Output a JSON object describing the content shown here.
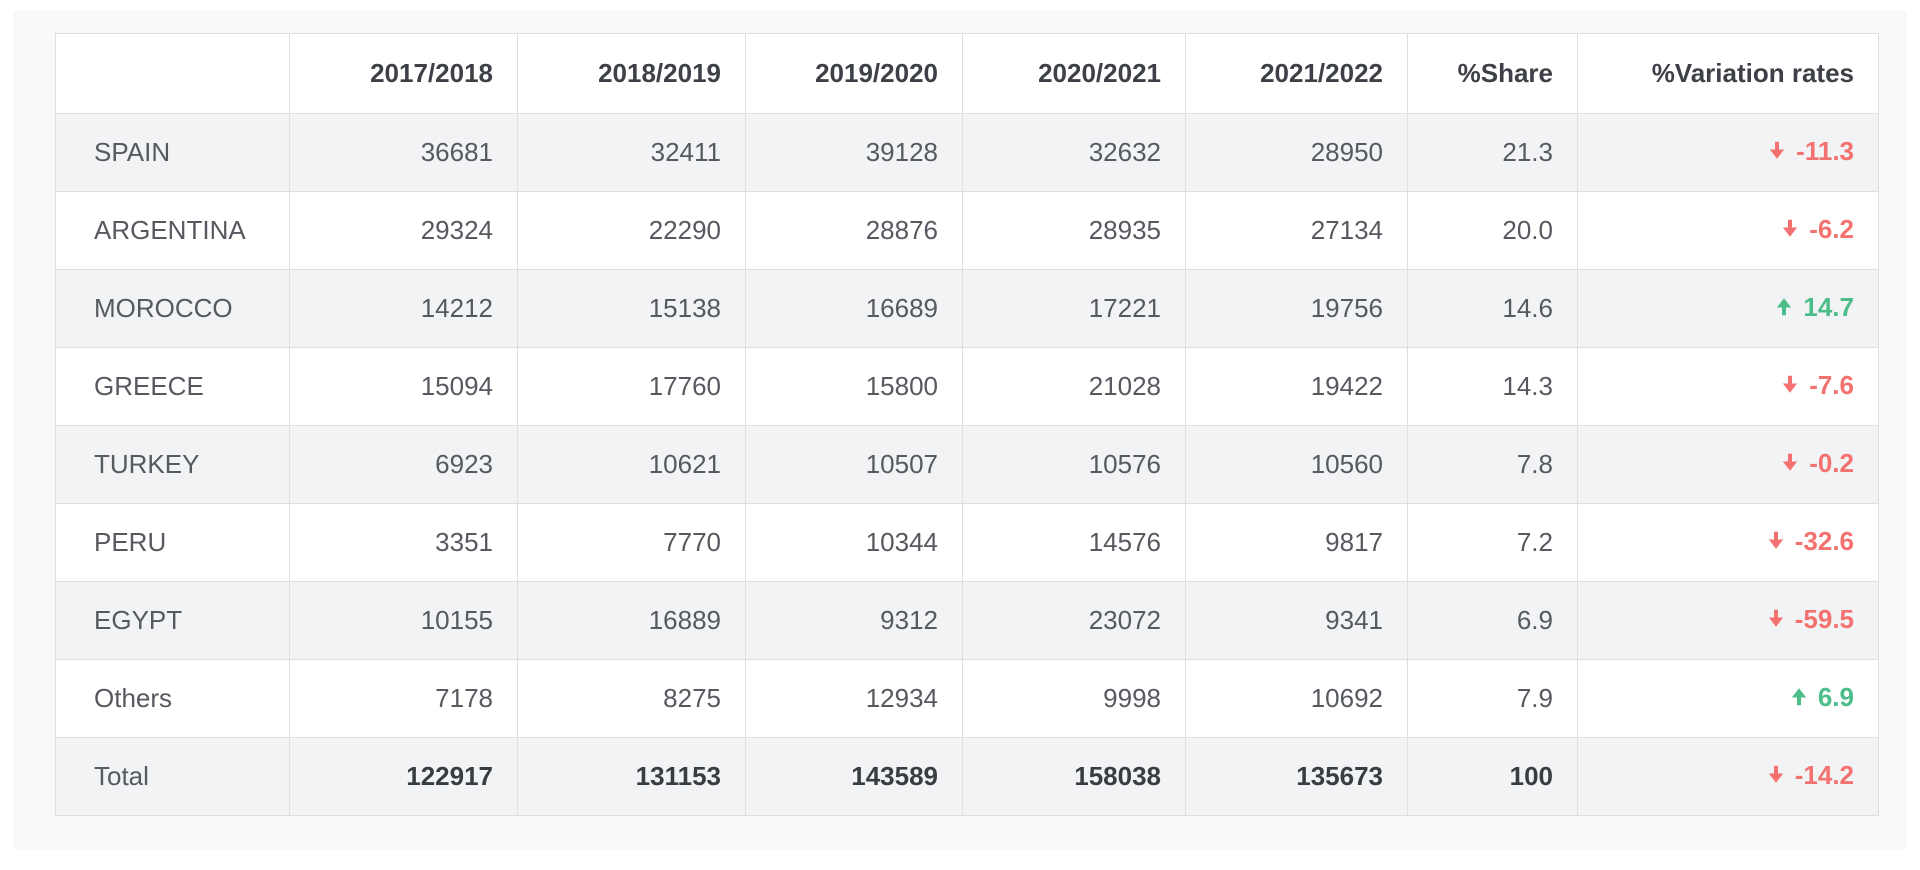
{
  "chart_data": {
    "type": "table",
    "columns": [
      "",
      "2017/2018",
      "2018/2019",
      "2019/2020",
      "2020/2021",
      "2021/2022",
      "%Share",
      "%Variation rates"
    ],
    "rows": [
      {
        "label": "SPAIN",
        "values": [
          "36681",
          "32411",
          "39128",
          "32632",
          "28950"
        ],
        "share": "21.3",
        "variation": "-11.3",
        "direction": "down"
      },
      {
        "label": "ARGENTINA",
        "values": [
          "29324",
          "22290",
          "28876",
          "28935",
          "27134"
        ],
        "share": "20.0",
        "variation": "-6.2",
        "direction": "down"
      },
      {
        "label": "MOROCCO",
        "values": [
          "14212",
          "15138",
          "16689",
          "17221",
          "19756"
        ],
        "share": "14.6",
        "variation": "14.7",
        "direction": "up"
      },
      {
        "label": "GREECE",
        "values": [
          "15094",
          "17760",
          "15800",
          "21028",
          "19422"
        ],
        "share": "14.3",
        "variation": "-7.6",
        "direction": "down"
      },
      {
        "label": "TURKEY",
        "values": [
          "6923",
          "10621",
          "10507",
          "10576",
          "10560"
        ],
        "share": "7.8",
        "variation": "-0.2",
        "direction": "down"
      },
      {
        "label": "PERU",
        "values": [
          "3351",
          "7770",
          "10344",
          "14576",
          "9817"
        ],
        "share": "7.2",
        "variation": "-32.6",
        "direction": "down"
      },
      {
        "label": "EGYPT",
        "values": [
          "10155",
          "16889",
          "9312",
          "23072",
          "9341"
        ],
        "share": "6.9",
        "variation": "-59.5",
        "direction": "down"
      },
      {
        "label": "Others",
        "values": [
          "7178",
          "8275",
          "12934",
          "9998",
          "10692"
        ],
        "share": "7.9",
        "variation": "6.9",
        "direction": "up"
      },
      {
        "label": "Total",
        "values": [
          "122917",
          "131153",
          "143589",
          "158038",
          "135673"
        ],
        "share": "100",
        "variation": "-14.2",
        "direction": "down",
        "is_total": true
      }
    ],
    "colors": {
      "up": "#4cbd88",
      "down": "#f3716e"
    },
    "layout_hints": {
      "striped_rows": "odd rows shaded",
      "total_row_bold": true
    }
  }
}
